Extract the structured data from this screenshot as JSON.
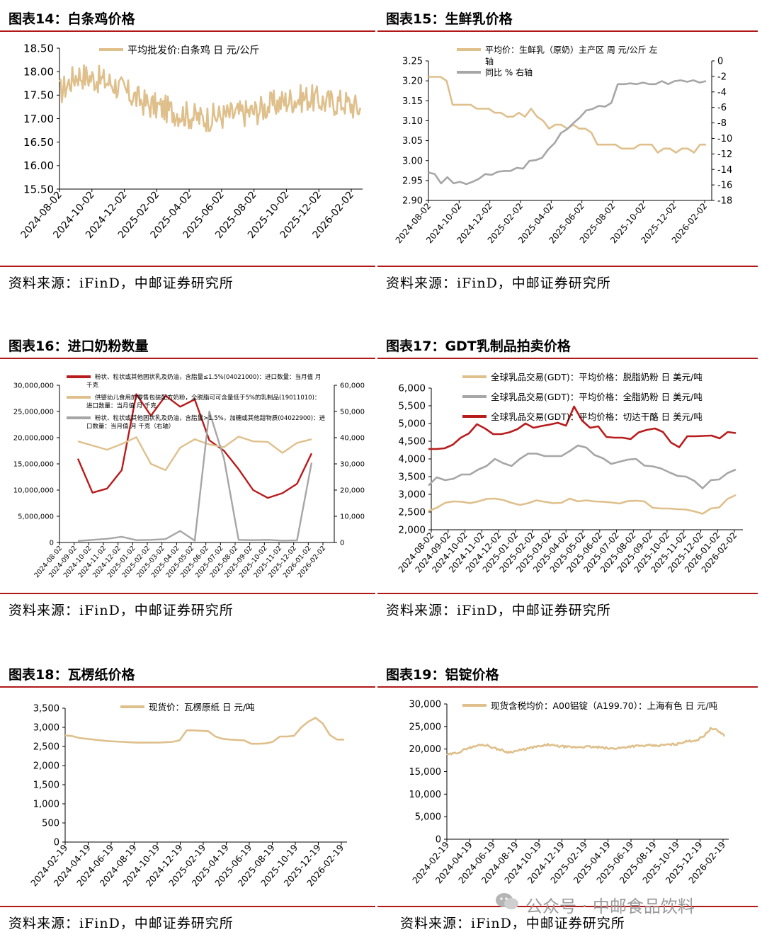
{
  "source_text": "资料来源：iFinD，中邮证券研究所",
  "watermark": "公众号 · 中邮食品饮料",
  "colors": {
    "tan": "#dfc08c",
    "red": "#b81c1c",
    "gray": "#a6a6a6",
    "rule": "#b01818"
  },
  "charts": [
    {
      "title": "图表14：白条鸡价格",
      "chart_data": {
        "type": "line",
        "x_ticks": [
          "2024-08-02",
          "2024-10-02",
          "2024-12-02",
          "2025-02-02",
          "2025-04-02",
          "2025-06-02",
          "2025-08-02",
          "2025-10-02",
          "2025-12-02",
          "2026-02-02"
        ],
        "y_ticks": [
          "18.50",
          "18.00",
          "17.50",
          "17.00",
          "16.50",
          "16.00",
          "15.50"
        ],
        "ylim": [
          15.5,
          18.5
        ],
        "series": [
          {
            "name": "平均批发价:白条鸡 日 元/公斤",
            "color": "#dfc08c",
            "style": "noisy",
            "anchors": [
              17.55,
              17.95,
              17.85,
              17.75,
              17.5,
              17.3,
              17.2,
              17.1,
              17.0,
              17.05,
              17.1,
              17.15,
              17.3,
              17.4,
              17.45,
              17.35,
              17.35,
              17.2
            ],
            "noise": 0.3
          }
        ]
      }
    },
    {
      "title": "图表15：生鲜乳价格",
      "chart_data": {
        "type": "line",
        "x_ticks": [
          "2024-08-02",
          "2024-10-02",
          "2024-12-02",
          "2025-02-02",
          "2025-04-02",
          "2025-06-02",
          "2025-08-02",
          "2025-10-02",
          "2025-12-02",
          "2026-02-02"
        ],
        "y_ticks": [
          "3.25",
          "3.20",
          "3.15",
          "3.10",
          "3.05",
          "3.00",
          "2.95",
          "2.90"
        ],
        "ylim": [
          2.9,
          3.25
        ],
        "y2_ticks": [
          "0",
          "-2",
          "-4",
          "-6",
          "-8",
          "-10",
          "-12",
          "-14",
          "-16",
          "-18"
        ],
        "y2lim": [
          -18,
          0
        ],
        "series": [
          {
            "name": "平均价：生鲜乳（原奶）主产区 周 元/公斤 左",
            "name2": "轴",
            "color": "#dfc08c",
            "axis": "left",
            "values": [
              3.21,
              3.21,
              3.21,
              3.2,
              3.14,
              3.14,
              3.14,
              3.14,
              3.13,
              3.13,
              3.13,
              3.12,
              3.12,
              3.11,
              3.11,
              3.12,
              3.11,
              3.13,
              3.11,
              3.1,
              3.08,
              3.09,
              3.09,
              3.08,
              3.09,
              3.08,
              3.08,
              3.07,
              3.04,
              3.04,
              3.04,
              3.04,
              3.03,
              3.03,
              3.03,
              3.04,
              3.04,
              3.04,
              3.02,
              3.03,
              3.03,
              3.02,
              3.03,
              3.03,
              3.02,
              3.04,
              3.04
            ]
          },
          {
            "name": "同比 % 右轴",
            "color": "#a6a6a6",
            "axis": "right",
            "values": [
              -14.4,
              -14.6,
              -15.8,
              -15.0,
              -15.8,
              -15.6,
              -15.9,
              -15.6,
              -15.2,
              -14.6,
              -14.7,
              -14.3,
              -14.2,
              -14.2,
              -13.8,
              -13.9,
              -12.9,
              -12.8,
              -12.5,
              -11.4,
              -10.6,
              -9.3,
              -8.8,
              -8.0,
              -7.3,
              -6.4,
              -6.2,
              -5.8,
              -5.9,
              -5.4,
              -3.0,
              -3.0,
              -2.9,
              -3.0,
              -2.8,
              -3.0,
              -3.0,
              -2.6,
              -3.0,
              -2.6,
              -2.5,
              -2.7,
              -2.5,
              -2.8,
              -2.6
            ]
          }
        ]
      }
    },
    {
      "title": "图表16：进口奶粉数量",
      "chart_data": {
        "type": "line",
        "x_ticks": [
          "2024-08-02",
          "2024-09-02",
          "2024-10-02",
          "2024-11-02",
          "2024-12-02",
          "2025-01-02",
          "2025-02-02",
          "2025-03-02",
          "2025-04-02",
          "2025-05-02",
          "2025-06-02",
          "2025-07-02",
          "2025-08-02",
          "2025-09-02",
          "2025-10-02",
          "2025-11-02",
          "2025-12-02",
          "2026-01-02",
          "2026-02-02"
        ],
        "y_ticks": [
          "30,000,000",
          "25,000,000",
          "20,000,000",
          "15,000,000",
          "10,000,000",
          "5,000,000",
          "0"
        ],
        "ylim": [
          0,
          30000000
        ],
        "y2_ticks": [
          "60,000",
          "50,000",
          "40,000",
          "30,000",
          "20,000",
          "10,000",
          "0"
        ],
        "y2lim": [
          0,
          60000
        ],
        "series": [
          {
            "name": "粉状、粒状或其他固状乳及奶油，含脂量≤1.5%(04021000)：进口数量：当月值 月",
            "name2": "千克",
            "color": "#b81c1c",
            "axis": "left",
            "values": [
              16000000,
              9500000,
              10300000,
              13800000,
              28300000,
              24200000,
              28000000,
              25900000,
              27300000,
              19500000,
              17500000,
              14000000,
              10000000,
              8500000,
              9400000,
              11200000,
              17000000
            ]
          },
          {
            "name": "供婴幼儿食用的零售包装配方奶粉，全脱脂可可含量低于5%的乳制品(19011010)：",
            "name2": "进口数量：当月值 月 千克",
            "color": "#dfc08c",
            "axis": "left",
            "values": [
              19300000,
              18500000,
              17700000,
              18800000,
              20100000,
              15000000,
              13800000,
              18100000,
              19700000,
              18700000,
              18200000,
              20200000,
              19300000,
              19200000,
              17100000,
              19000000,
              19700000
            ]
          },
          {
            "name": "粉状、粒状或其他固状乳及奶油，含脂量>1.5%，加糖或其他甜物质(04022900)：进",
            "name2": "口数量：当月值 月 千克（右轴）",
            "color": "#a6a6a6",
            "axis": "right",
            "values": [
              600,
              1000,
              1400,
              2200,
              900,
              1000,
              1300,
              4400,
              700,
              50000,
              32000,
              1000,
              900,
              1000,
              700,
              800,
              30500
            ]
          }
        ]
      }
    },
    {
      "title": "图表17：GDT乳制品拍卖价格",
      "chart_data": {
        "type": "line",
        "x_ticks": [
          "2024-08-02",
          "2024-09-02",
          "2024-10-02",
          "2024-11-02",
          "2024-12-02",
          "2025-01-02",
          "2025-02-02",
          "2025-03-02",
          "2025-04-02",
          "2025-05-02",
          "2025-06-02",
          "2025-07-02",
          "2025-08-02",
          "2025-09-02",
          "2025-10-02",
          "2025-11-02",
          "2025-12-02",
          "2026-01-02",
          "2026-02-02"
        ],
        "y_ticks": [
          "6,000",
          "5,500",
          "5,000",
          "4,500",
          "4,000",
          "3,500",
          "3,000",
          "2,500",
          "2,000"
        ],
        "ylim": [
          2000,
          6000
        ],
        "series": [
          {
            "name": "全球乳品交易(GDT)：平均价格：脱脂奶粉 日 美元/吨",
            "color": "#dfc08c",
            "values": [
              2530,
              2620,
              2760,
              2800,
              2790,
              2750,
              2800,
              2870,
              2880,
              2840,
              2760,
              2700,
              2750,
              2830,
              2790,
              2750,
              2760,
              2880,
              2800,
              2830,
              2800,
              2790,
              2770,
              2740,
              2810,
              2820,
              2800,
              2620,
              2600,
              2600,
              2580,
              2570,
              2520,
              2450,
              2600,
              2630,
              2870,
              2980
            ]
          },
          {
            "name": "全球乳品交易(GDT)：平均价格：全脂奶粉 日 美元/吨",
            "color": "#a6a6a6",
            "values": [
              3250,
              3480,
              3400,
              3440,
              3560,
              3560,
              3700,
              3800,
              4000,
              3880,
              3800,
              4000,
              4150,
              4150,
              4080,
              4080,
              4080,
              4220,
              4380,
              4320,
              4110,
              4020,
              3860,
              3920,
              3980,
              4000,
              3810,
              3790,
              3730,
              3620,
              3520,
              3500,
              3380,
              3170,
              3400,
              3420,
              3600,
              3700
            ]
          },
          {
            "name": "全球乳品交易(GDT)：平均价格：切达干酪 日 美元/吨",
            "color": "#b81c1c",
            "values": [
              4280,
              4280,
              4300,
              4400,
              4600,
              4720,
              4980,
              4860,
              4700,
              4700,
              4750,
              4840,
              5000,
              4880,
              4930,
              4970,
              5020,
              4940,
              5480,
              5080,
              4880,
              4920,
              4620,
              4600,
              4600,
              4560,
              4750,
              4820,
              4860,
              4760,
              4460,
              4330,
              4640,
              4640,
              4650,
              4660,
              4580,
              4760,
              4730
            ]
          }
        ]
      }
    },
    {
      "title": "图表18：瓦楞纸价格",
      "chart_data": {
        "type": "line",
        "x_ticks": [
          "2024-02-19",
          "2024-04-19",
          "2024-06-19",
          "2024-08-19",
          "2024-10-19",
          "2024-12-19",
          "2025-02-19",
          "2025-04-19",
          "2025-06-19",
          "2025-08-19",
          "2025-10-19",
          "2025-12-19",
          "2026-02-19"
        ],
        "y_ticks": [
          "3,500",
          "3,000",
          "2,500",
          "2,000",
          "1,500",
          "1,000",
          "500",
          "0"
        ],
        "ylim": [
          0,
          3500
        ],
        "series": [
          {
            "name": "现货价：瓦楞原纸 日 元/吨",
            "color": "#dfc08c",
            "values": [
              2790,
              2770,
              2720,
              2700,
              2680,
              2660,
              2640,
              2630,
              2620,
              2610,
              2600,
              2600,
              2600,
              2600,
              2610,
              2620,
              2660,
              2920,
              2920,
              2910,
              2900,
              2760,
              2700,
              2680,
              2670,
              2660,
              2570,
              2570,
              2580,
              2620,
              2760,
              2760,
              2780,
              3000,
              3150,
              3250,
              3100,
              2800,
              2680,
              2680
            ]
          }
        ]
      }
    },
    {
      "title": "图表19：铝锭价格",
      "chart_data": {
        "type": "line",
        "x_ticks": [
          "2024-02-19",
          "2024-04-19",
          "2024-06-19",
          "2024-08-19",
          "2024-10-19",
          "2024-12-19",
          "2025-02-19",
          "2025-04-19",
          "2025-06-19",
          "2025-08-19",
          "2025-10-19",
          "2025-12-19",
          "2026-02-19"
        ],
        "y_ticks": [
          "30,000",
          "25,000",
          "20,000",
          "15,000",
          "10,000",
          "5,000",
          "0"
        ],
        "ylim": [
          0,
          30000
        ],
        "series": [
          {
            "name": "现货含税均价：A00铝锭（A199.70）：上海有色 日 元/吨",
            "color": "#dfc08c",
            "style": "jitter",
            "values": [
              18700,
              19000,
              19400,
              20200,
              20500,
              21000,
              20800,
              20200,
              19800,
              19300,
              19500,
              19800,
              20100,
              20500,
              20600,
              21000,
              20700,
              20600,
              20400,
              20400,
              20500,
              20500,
              20400,
              20300,
              20100,
              20200,
              20300,
              20600,
              20700,
              20700,
              20800,
              20700,
              20900,
              21000,
              21100,
              21600,
              21800,
              22000,
              23000,
              24600,
              24100,
              23000
            ]
          }
        ]
      }
    }
  ]
}
